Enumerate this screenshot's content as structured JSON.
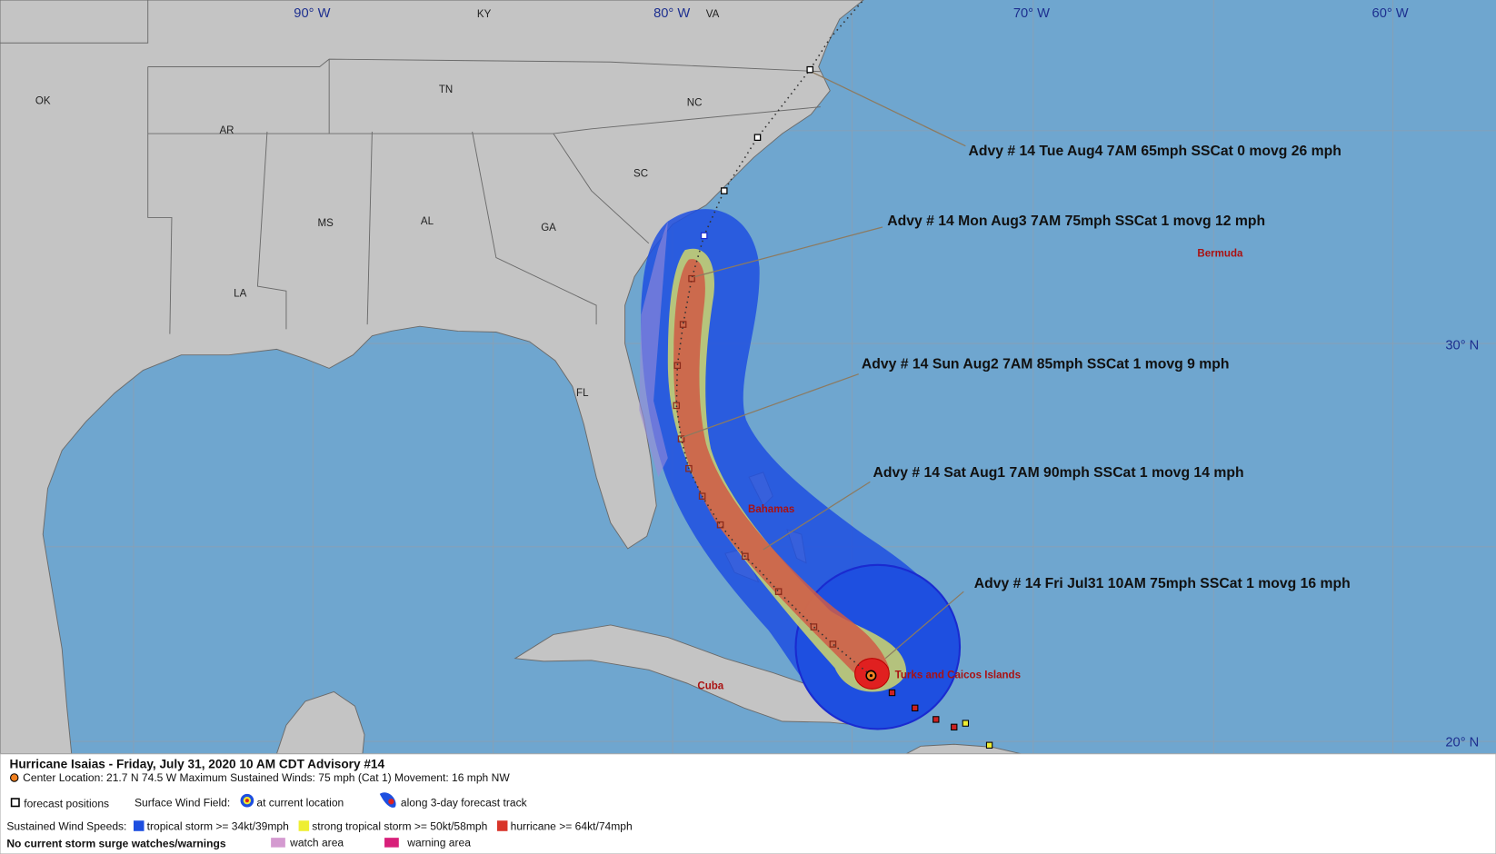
{
  "grid_labels": {
    "lon": [
      "90° W",
      "80° W",
      "70° W",
      "60° W"
    ],
    "lat": [
      "30° N",
      "20° N"
    ]
  },
  "state_labels": [
    "KY",
    "VA",
    "OK",
    "TN",
    "NC",
    "AR",
    "SC",
    "MS",
    "AL",
    "GA",
    "LA",
    "FL"
  ],
  "place_labels": [
    "Bermuda",
    "Bahamas",
    "Cuba",
    "Turks and Caicos Islands"
  ],
  "advisories": [
    "Advy # 14 Tue Aug4 7AM  65mph SSCat 0 movg 26 mph",
    "Advy # 14 Mon Aug3 7AM  75mph SSCat 1 movg 12 mph",
    "Advy # 14 Sun Aug2 7AM  85mph SSCat 1 movg 9 mph",
    "Advy # 14 Sat Aug1 7AM  90mph SSCat 1 movg 14 mph",
    "Advy # 14 Fri Jul31 10AM  75mph SSCat 1 movg 16 mph"
  ],
  "legend": {
    "title": "Hurricane Isaias  -  Friday, July 31, 2020  10 AM CDT   Advisory #14",
    "center_line": "Center Location: 21.7 N  74.5 W   Maximum Sustained Winds: 75 mph (Cat 1) Movement: 16 mph NW",
    "forecast_positions": "forecast positions",
    "surface_wind_field": "Surface Wind Field:",
    "at_current_location": "at current location",
    "along_track": "along 3-day forecast track",
    "sustained_wind_speeds": "Sustained Wind Speeds:",
    "tropical_storm": "tropical storm >= 34kt/39mph",
    "strong_tropical_storm": "strong tropical storm >= 50kt/58mph",
    "hurricane": "hurricane >= 64kt/74mph",
    "no_surge": "No current storm surge watches/warnings",
    "watch_area": "watch area",
    "warning_area": "warning area"
  }
}
